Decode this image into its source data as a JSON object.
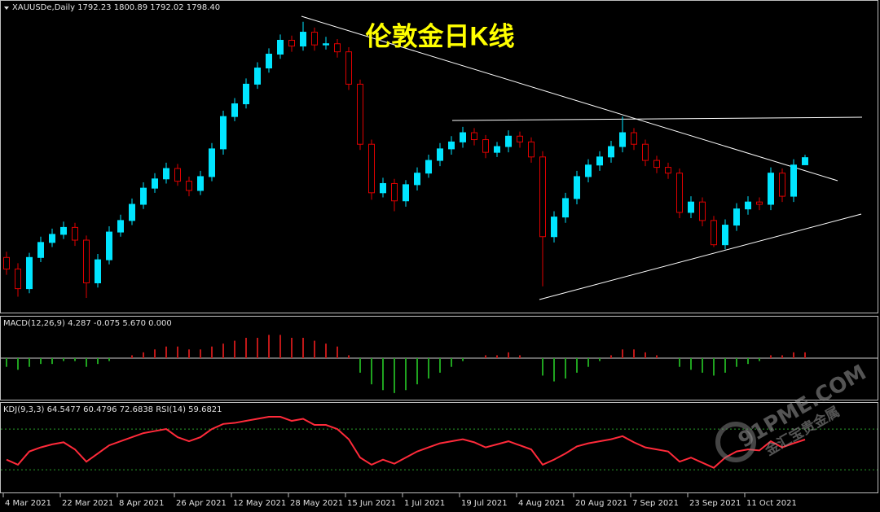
{
  "chart_data": [
    {
      "type": "candlestick",
      "header": "XAUUSDe,Daily  1792.23 1800.89 1792.02 1798.40",
      "title": "伦敦金日K线",
      "categories": [
        "4 Mar 2021",
        null,
        null,
        null,
        null,
        "22 Mar 2021",
        null,
        null,
        null,
        null,
        "8 Apr 2021",
        null,
        null,
        null,
        null,
        "26 Apr 2021",
        null,
        null,
        null,
        null,
        "12 May 2021",
        null,
        null,
        null,
        null,
        "28 May 2021",
        null,
        null,
        null,
        null,
        "15 Jun 2021",
        null,
        null,
        null,
        null,
        "1 Jul 2021",
        null,
        null,
        null,
        null,
        "19 Jul 2021",
        null,
        null,
        null,
        null,
        "4 Aug 2021",
        null,
        null,
        null,
        null,
        "20 Aug 2021",
        null,
        null,
        null,
        null,
        "7 Sep 2021",
        null,
        null,
        null,
        null,
        "23 Sep 2021",
        null,
        null,
        null,
        null,
        "11 Oct 2021",
        null,
        null,
        null,
        null,
        null
      ],
      "open": [
        1712,
        1702,
        1685,
        1712,
        1725,
        1732,
        1738,
        1727,
        1690,
        1710,
        1734,
        1744,
        1758,
        1772,
        1780,
        1789,
        1778,
        1770,
        1782,
        1806,
        1834,
        1845,
        1862,
        1876,
        1888,
        1900,
        1895,
        1907,
        1896,
        1897,
        1890,
        1862,
        1810,
        1768,
        1776,
        1761,
        1775,
        1785,
        1796,
        1806,
        1812,
        1820,
        1814,
        1803,
        1808,
        1817,
        1812,
        1799,
        1730,
        1747,
        1763,
        1782,
        1792,
        1799,
        1808,
        1820,
        1810,
        1796,
        1790,
        1785,
        1751,
        1760,
        1744,
        1723,
        1740,
        1754,
        1760,
        1758,
        1785,
        1765,
        1792.23
      ],
      "high": [
        1717,
        1707,
        1716,
        1730,
        1737,
        1743,
        1742,
        1731,
        1715,
        1739,
        1749,
        1763,
        1777,
        1785,
        1794,
        1793,
        1782,
        1787,
        1811,
        1839,
        1850,
        1867,
        1881,
        1893,
        1905,
        1904,
        1916,
        1911,
        1903,
        1901,
        1894,
        1866,
        1814,
        1781,
        1780,
        1779,
        1790,
        1801,
        1811,
        1817,
        1825,
        1824,
        1818,
        1812,
        1822,
        1821,
        1816,
        1804,
        1752,
        1768,
        1787,
        1797,
        1804,
        1813,
        1834,
        1824,
        1814,
        1800,
        1794,
        1789,
        1765,
        1764,
        1748,
        1745,
        1759,
        1765,
        1764,
        1790,
        1789,
        1797,
        1800.89
      ],
      "low": [
        1697,
        1678,
        1681,
        1708,
        1721,
        1728,
        1722,
        1677,
        1686,
        1706,
        1730,
        1740,
        1754,
        1768,
        1776,
        1774,
        1765,
        1766,
        1778,
        1801,
        1830,
        1841,
        1858,
        1872,
        1884,
        1890,
        1891,
        1891,
        1892,
        1885,
        1857,
        1805,
        1762,
        1764,
        1752,
        1756,
        1770,
        1781,
        1791,
        1801,
        1807,
        1809,
        1798,
        1799,
        1803,
        1807,
        1794,
        1687,
        1725,
        1742,
        1758,
        1777,
        1787,
        1794,
        1803,
        1805,
        1791,
        1785,
        1780,
        1746,
        1746,
        1739,
        1721,
        1719,
        1735,
        1749,
        1753,
        1753,
        1760,
        1760,
        1792.02
      ],
      "close": [
        1702,
        1685,
        1712,
        1725,
        1732,
        1738,
        1727,
        1690,
        1710,
        1734,
        1744,
        1758,
        1772,
        1780,
        1789,
        1778,
        1770,
        1782,
        1806,
        1834,
        1845,
        1862,
        1876,
        1888,
        1900,
        1895,
        1907,
        1896,
        1897,
        1890,
        1862,
        1810,
        1768,
        1776,
        1761,
        1775,
        1785,
        1796,
        1806,
        1812,
        1820,
        1814,
        1803,
        1808,
        1817,
        1812,
        1799,
        1730,
        1747,
        1763,
        1782,
        1792,
        1799,
        1808,
        1820,
        1810,
        1796,
        1790,
        1785,
        1751,
        1760,
        1744,
        1723,
        1740,
        1754,
        1760,
        1758,
        1785,
        1765,
        1792,
        1798.4
      ],
      "up_color": "#00e5ff",
      "down_color": "#e00000",
      "ylim": [
        1665,
        1925
      ]
    },
    {
      "type": "bar",
      "title": "MACD(12,26,9) 4.287 -0.075 5.670 0.000",
      "values": [
        -3,
        -4,
        -3,
        -2,
        -2,
        -1,
        -1,
        -3,
        -2,
        -1,
        0,
        1,
        2,
        3,
        4,
        4,
        3,
        3,
        4,
        5,
        6,
        7,
        7,
        8,
        8,
        7,
        7,
        6,
        5,
        4,
        1,
        -5,
        -9,
        -11,
        -12,
        -11,
        -9,
        -7,
        -5,
        -3,
        -1,
        0,
        1,
        1,
        2,
        1,
        0,
        -6,
        -8,
        -7,
        -5,
        -3,
        -1,
        1,
        3,
        3,
        2,
        1,
        0,
        -3,
        -4,
        -5,
        -6,
        -5,
        -3,
        -2,
        -1,
        1,
        1,
        2,
        2
      ],
      "positive_color": "#c01818",
      "negative_color": "#1fa31f",
      "ylim": [
        -14,
        14
      ]
    },
    {
      "type": "line",
      "title": "KDJ(9,3,3) 64.5477 60.4796 72.6838 RSI(14) 59.6821",
      "values": [
        40,
        35,
        48,
        52,
        55,
        57,
        50,
        38,
        46,
        54,
        58,
        62,
        66,
        68,
        70,
        62,
        58,
        62,
        70,
        75,
        76,
        78,
        80,
        82,
        82,
        78,
        80,
        74,
        74,
        70,
        60,
        42,
        35,
        40,
        36,
        42,
        48,
        52,
        56,
        58,
        60,
        57,
        52,
        55,
        58,
        54,
        50,
        35,
        40,
        46,
        53,
        56,
        58,
        60,
        63,
        57,
        52,
        50,
        48,
        38,
        42,
        37,
        32,
        42,
        48,
        50,
        49,
        58,
        52,
        56,
        59.6821
      ],
      "color": "#ff2a3a",
      "levels": [
        30,
        70
      ],
      "level_color": "#2a9d2a",
      "ylim": [
        7,
        94
      ]
    }
  ],
  "watermark": {
    "site": "91PME.COM",
    "name": "金汇宝贵金属"
  }
}
